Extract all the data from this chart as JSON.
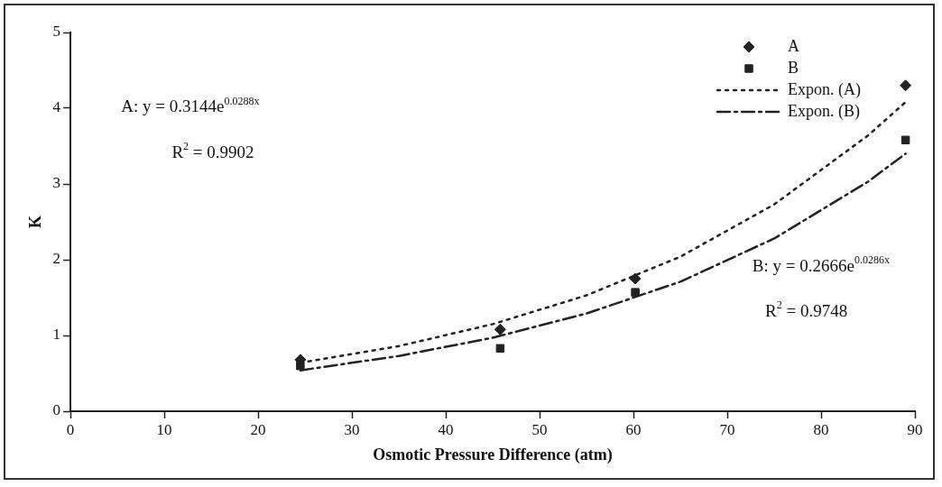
{
  "chart_data": {
    "type": "scatter",
    "xlabel": "Osmotic Pressure Difference (atm)",
    "ylabel": "K",
    "xlim": [
      0,
      90
    ],
    "xticks": [
      0,
      10,
      20,
      30,
      40,
      50,
      60,
      70,
      80,
      90
    ],
    "ylim": [
      0,
      5
    ],
    "yticks": [
      0,
      1,
      2,
      3,
      4,
      5
    ],
    "grid": false,
    "legend": "top right",
    "series": [
      {
        "name": "A",
        "marker": "diamond",
        "color": "#222222",
        "x": [
          24.5,
          45.8,
          60.2,
          89
        ],
        "values": [
          0.68,
          1.08,
          1.75,
          4.3
        ]
      },
      {
        "name": "B",
        "marker": "square",
        "color": "#222222",
        "x": [
          24.5,
          45.8,
          60.2,
          89
        ],
        "values": [
          0.6,
          0.83,
          1.57,
          3.58
        ]
      },
      {
        "name": "Expon. (A)",
        "type": "line",
        "line_style": "dotted",
        "marker": "none",
        "color": "#222222",
        "x": [
          24.5,
          35,
          45,
          55,
          65,
          75,
          85,
          89
        ],
        "values": [
          0.64,
          0.86,
          1.15,
          1.53,
          2.04,
          2.73,
          3.64,
          4.08
        ]
      },
      {
        "name": "Expon. (B)",
        "type": "line",
        "line_style": "dashdot",
        "marker": "none",
        "color": "#222222",
        "x": [
          24.5,
          35,
          45,
          55,
          65,
          75,
          85,
          89
        ],
        "values": [
          0.54,
          0.73,
          0.97,
          1.29,
          1.71,
          2.28,
          3.03,
          3.4
        ]
      }
    ],
    "annotations": [
      "A: y = 0.3144e$^{0.0288x}$",
      "R$^{2}$ = 0.9902",
      "B: y = 0.2666e$^{0.0286x}$",
      "R$^{2}$ = 0.9748"
    ]
  }
}
